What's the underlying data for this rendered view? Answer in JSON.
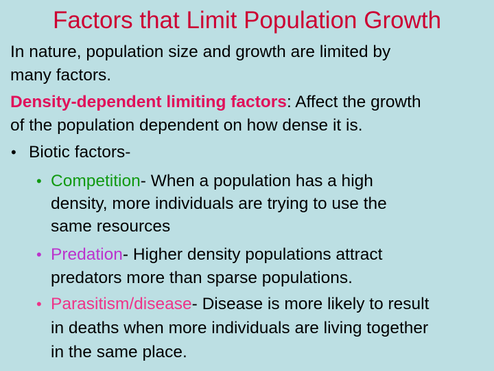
{
  "title": "Factors that Limit Population Growth",
  "intro": [
    "In nature, population size and growth are limited by",
    "many factors."
  ],
  "density": {
    "term": "Density-dependent limiting factors",
    "rest_line1": ": Affect the growth",
    "line2": "of the population dependent on how dense it is."
  },
  "biotic": {
    "bullet": "•",
    "label": "Biotic factors-"
  },
  "items": [
    {
      "bullet": "•",
      "term": "Competition",
      "rest": [
        "- When a population has a high",
        "density, more individuals are trying to use the",
        "same resources"
      ],
      "color": "#119911"
    },
    {
      "bullet": "•",
      "term": "Predation",
      "rest": [
        "- Higher density populations attract",
        "predators more than sparse populations."
      ],
      "color": "#bb33cc"
    },
    {
      "bullet": "•",
      "term": "Parasitism/disease",
      "rest": [
        "- Disease is more likely to result",
        "in deaths when more individuals are living together",
        "in the same place."
      ],
      "color": "#ee3388"
    }
  ],
  "colors": {
    "background": "#bcdfe3",
    "title": "#cc0033",
    "density_term": "#e0105a"
  }
}
